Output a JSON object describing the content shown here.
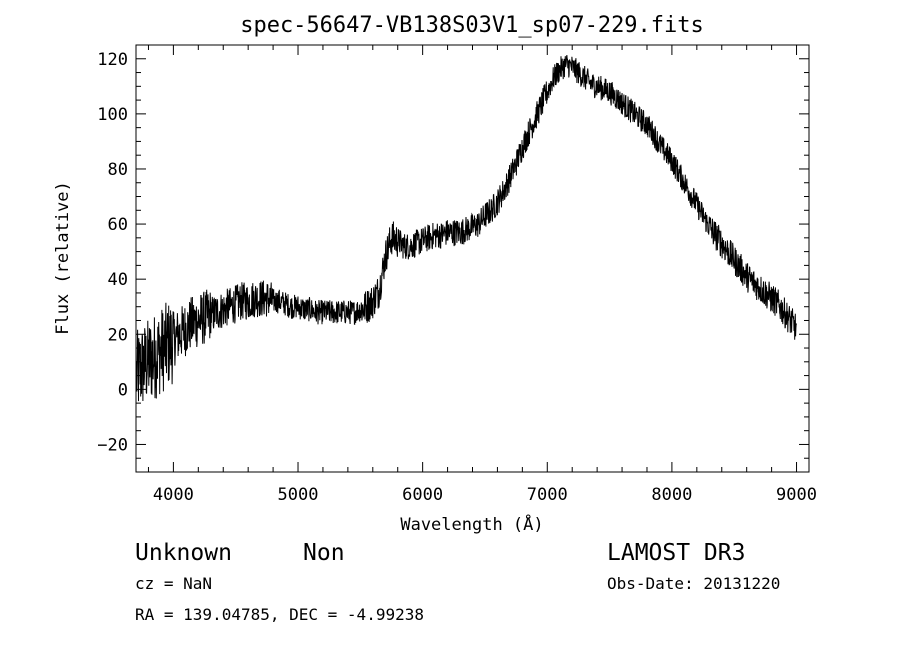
{
  "chart_data": {
    "type": "line",
    "title": "spec-56647-VB138S03V1_sp07-229.fits",
    "xlabel": "Wavelength (Å)",
    "ylabel": "Flux (relative)",
    "xlim": [
      3700,
      9100
    ],
    "ylim": [
      -30,
      125
    ],
    "xticks": [
      4000,
      5000,
      6000,
      7000,
      8000,
      9000
    ],
    "yticks": [
      -20,
      0,
      20,
      40,
      60,
      80,
      100,
      120
    ],
    "grid": false,
    "series": [
      {
        "x": [
          3700,
          3750,
          3800,
          3850,
          3900,
          3950,
          4000,
          4050,
          4100,
          4150,
          4200,
          4250,
          4300,
          4350,
          4400,
          4450,
          4500,
          4550,
          4600,
          4650,
          4700,
          4750,
          4800,
          4850,
          4900,
          4950,
          5000,
          5050,
          5100,
          5150,
          5200,
          5250,
          5300,
          5350,
          5400,
          5450,
          5500,
          5550,
          5600,
          5650,
          5700,
          5750,
          5800,
          5850,
          5900,
          5950,
          6000,
          6050,
          6100,
          6150,
          6200,
          6250,
          6300,
          6350,
          6400,
          6450,
          6500,
          6550,
          6600,
          6650,
          6700,
          6750,
          6800,
          6850,
          6900,
          6950,
          7000,
          7050,
          7100,
          7150,
          7200,
          7250,
          7300,
          7350,
          7400,
          7450,
          7500,
          7550,
          7600,
          7650,
          7700,
          7750,
          7800,
          7850,
          7900,
          7950,
          8000,
          8050,
          8100,
          8150,
          8200,
          8250,
          8300,
          8350,
          8400,
          8450,
          8500,
          8550,
          8600,
          8650,
          8700,
          8750,
          8800,
          8850,
          8900,
          8950,
          9000
        ],
        "y": [
          5,
          8,
          10,
          12,
          14,
          16,
          18,
          20,
          22,
          24,
          25,
          26,
          27,
          28,
          29,
          30,
          31,
          32,
          32,
          33,
          33,
          33,
          32,
          32,
          31,
          30,
          30,
          29,
          29,
          28,
          28,
          28,
          28,
          28,
          28,
          28,
          29,
          30,
          32,
          36,
          48,
          55,
          54,
          52,
          52,
          53,
          54,
          55,
          56,
          56,
          57,
          57,
          57,
          58,
          59,
          60,
          63,
          65,
          68,
          72,
          77,
          82,
          88,
          93,
          98,
          103,
          108,
          113,
          116,
          118,
          117,
          115,
          113,
          111,
          110,
          109,
          108,
          106,
          104,
          102,
          100,
          98,
          96,
          93,
          89,
          86,
          83,
          79,
          75,
          71,
          67,
          63,
          59,
          56,
          53,
          50,
          47,
          44,
          41,
          39,
          37,
          35,
          33,
          31,
          28,
          25,
          22
        ]
      }
    ]
  },
  "info": {
    "class_label": "Unknown",
    "subclass_label": "Non",
    "survey_label": "LAMOST DR3",
    "cz_text": "cz = NaN",
    "date_text": "Obs-Date: 20131220",
    "coord_text": "RA = 139.04785, DEC =  -4.99238"
  }
}
